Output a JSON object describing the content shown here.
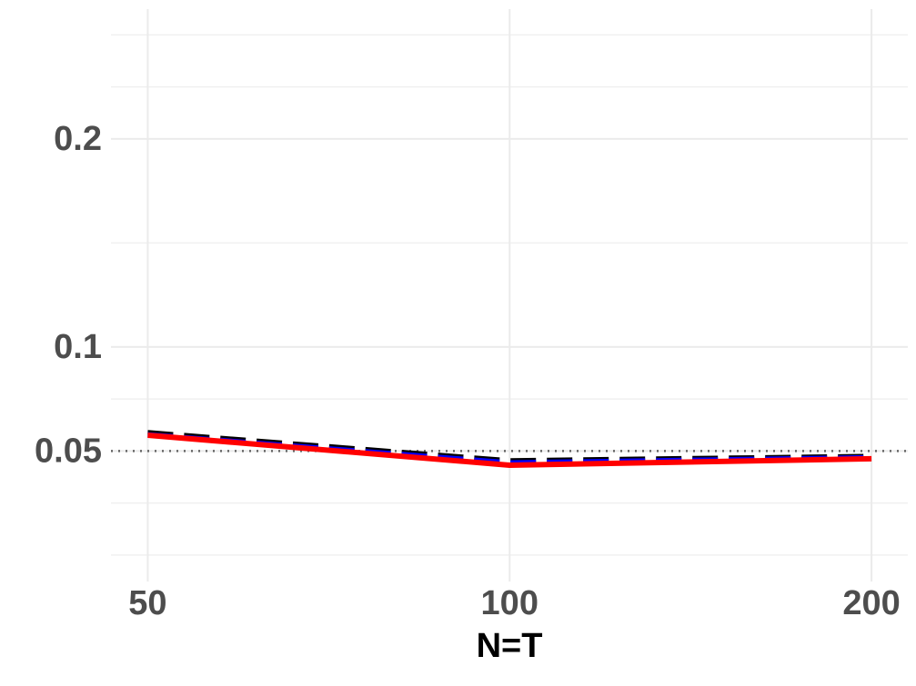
{
  "chart_data": {
    "type": "line",
    "x_label": "N=T",
    "x": [
      50,
      100,
      200
    ],
    "xlog": true,
    "xlim": [
      46.6,
      214.4
    ],
    "xticks": [
      50,
      100,
      200
    ],
    "ylim": [
      -0.0127,
      0.2624
    ],
    "yticks": [
      0.05,
      0.1,
      0.2
    ],
    "yminor": [
      0,
      0.025,
      0.075,
      0.15,
      0.225,
      0.25
    ],
    "hline": 0.05,
    "grid": true,
    "series": [
      {
        "color": "#000000",
        "linestyle": "dashed",
        "values": [
          0.059,
          0.0455,
          0.0476
        ]
      },
      {
        "color": "#0000ff",
        "linestyle": "dashed",
        "values": [
          0.058,
          0.0445,
          0.047
        ]
      },
      {
        "color": "#ff0000",
        "linestyle": "solid",
        "values": [
          0.0576,
          0.0432,
          0.0463
        ]
      }
    ]
  }
}
